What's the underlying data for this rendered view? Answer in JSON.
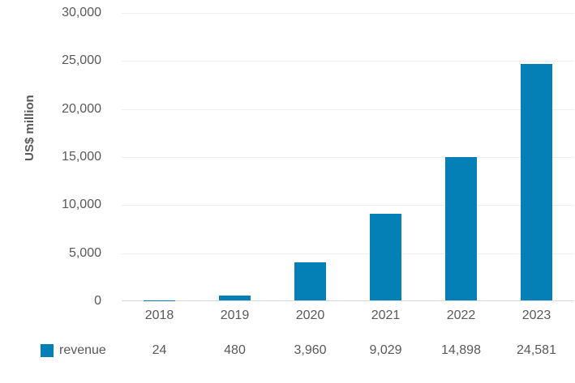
{
  "chart_data": {
    "type": "bar",
    "title": "",
    "categories": [
      "2018",
      "2019",
      "2020",
      "2021",
      "2022",
      "2023"
    ],
    "series": [
      {
        "name": "revenue",
        "values": [
          24,
          480,
          3960,
          9029,
          14898,
          24581
        ]
      }
    ],
    "value_labels": [
      "24",
      "480",
      "3,960",
      "9,029",
      "14,898",
      "24,581"
    ],
    "xlabel": "",
    "ylabel": "US$ million",
    "ylim": [
      0,
      30000
    ],
    "ytick_interval": 5000,
    "ytick_labels": [
      "0",
      "5,000",
      "10,000",
      "15,000",
      "20,000",
      "25,000",
      "30,000"
    ],
    "grid": true,
    "legend_position": "bottom-left"
  },
  "legend": {
    "revenue_label": "revenue"
  },
  "colors": {
    "bar": "#0580b7",
    "gridline": "#efefef",
    "axis_line": "#d9d9d9",
    "text": "#595959"
  }
}
